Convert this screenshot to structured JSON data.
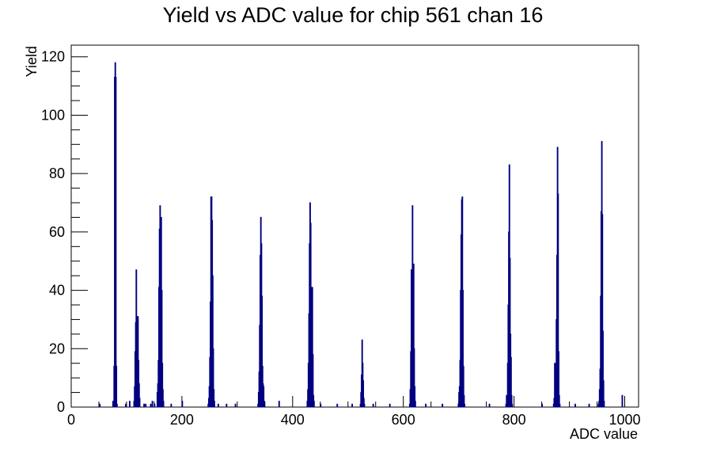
{
  "chart_data": {
    "type": "histogram",
    "title": "Yield vs ADC value for chip 561 chan 16",
    "xlabel": "ADC value",
    "ylabel": "Yield",
    "xlim": [
      0,
      1025
    ],
    "ylim": [
      0,
      124
    ],
    "x_ticks": [
      0,
      200,
      400,
      600,
      800,
      1000
    ],
    "y_ticks": [
      0,
      20,
      40,
      60,
      80,
      100,
      120
    ],
    "grid": false,
    "legend": "none",
    "line_color": "#000080",
    "bins": [
      [
        51,
        1
      ],
      [
        75,
        2
      ],
      [
        77,
        14
      ],
      [
        78,
        113
      ],
      [
        79,
        118
      ],
      [
        80,
        113
      ],
      [
        81,
        14
      ],
      [
        82,
        1
      ],
      [
        98,
        1
      ],
      [
        105,
        2
      ],
      [
        113,
        2
      ],
      [
        114,
        7
      ],
      [
        115,
        19
      ],
      [
        116,
        29
      ],
      [
        117,
        47
      ],
      [
        118,
        31
      ],
      [
        119,
        18
      ],
      [
        120,
        31
      ],
      [
        121,
        16
      ],
      [
        122,
        8
      ],
      [
        123,
        3
      ],
      [
        131,
        1
      ],
      [
        134,
        1
      ],
      [
        143,
        1
      ],
      [
        146,
        2
      ],
      [
        150,
        1
      ],
      [
        155,
        5
      ],
      [
        156,
        8
      ],
      [
        157,
        16
      ],
      [
        158,
        41
      ],
      [
        159,
        61
      ],
      [
        160,
        69
      ],
      [
        161,
        27
      ],
      [
        162,
        65
      ],
      [
        163,
        40
      ],
      [
        164,
        15
      ],
      [
        165,
        6
      ],
      [
        166,
        2
      ],
      [
        180,
        1
      ],
      [
        200,
        2
      ],
      [
        247,
        1
      ],
      [
        248,
        3
      ],
      [
        249,
        7
      ],
      [
        250,
        17
      ],
      [
        251,
        36
      ],
      [
        252,
        72
      ],
      [
        253,
        72
      ],
      [
        254,
        64
      ],
      [
        255,
        45
      ],
      [
        256,
        20
      ],
      [
        257,
        6
      ],
      [
        258,
        2
      ],
      [
        265,
        1
      ],
      [
        280,
        1
      ],
      [
        296,
        1
      ],
      [
        337,
        1
      ],
      [
        338,
        5
      ],
      [
        339,
        12
      ],
      [
        340,
        28
      ],
      [
        341,
        52
      ],
      [
        342,
        65
      ],
      [
        343,
        56
      ],
      [
        344,
        38
      ],
      [
        345,
        14
      ],
      [
        346,
        8
      ],
      [
        347,
        7
      ],
      [
        348,
        2
      ],
      [
        375,
        2
      ],
      [
        426,
        2
      ],
      [
        427,
        6
      ],
      [
        428,
        15
      ],
      [
        429,
        32
      ],
      [
        430,
        56
      ],
      [
        431,
        70
      ],
      [
        432,
        63
      ],
      [
        433,
        41
      ],
      [
        434,
        30
      ],
      [
        435,
        41
      ],
      [
        436,
        18
      ],
      [
        437,
        4
      ],
      [
        438,
        2
      ],
      [
        450,
        1
      ],
      [
        480,
        1
      ],
      [
        507,
        1
      ],
      [
        522,
        1
      ],
      [
        523,
        5
      ],
      [
        524,
        11
      ],
      [
        525,
        23
      ],
      [
        526,
        15
      ],
      [
        527,
        9
      ],
      [
        528,
        3
      ],
      [
        529,
        1
      ],
      [
        545,
        1
      ],
      [
        575,
        1
      ],
      [
        611,
        1
      ],
      [
        612,
        6
      ],
      [
        613,
        19
      ],
      [
        614,
        47
      ],
      [
        615,
        45
      ],
      [
        616,
        69
      ],
      [
        617,
        42
      ],
      [
        618,
        49
      ],
      [
        619,
        20
      ],
      [
        620,
        7
      ],
      [
        621,
        2
      ],
      [
        640,
        1
      ],
      [
        670,
        1
      ],
      [
        699,
        1
      ],
      [
        700,
        5
      ],
      [
        701,
        7
      ],
      [
        702,
        16
      ],
      [
        703,
        40
      ],
      [
        704,
        59
      ],
      [
        705,
        71
      ],
      [
        706,
        72
      ],
      [
        707,
        40
      ],
      [
        708,
        14
      ],
      [
        709,
        4
      ],
      [
        710,
        1
      ],
      [
        755,
        1
      ],
      [
        785,
        1
      ],
      [
        786,
        4
      ],
      [
        787,
        2
      ],
      [
        788,
        15
      ],
      [
        789,
        35
      ],
      [
        790,
        60
      ],
      [
        791,
        83
      ],
      [
        792,
        51
      ],
      [
        793,
        25
      ],
      [
        794,
        17
      ],
      [
        795,
        4
      ],
      [
        796,
        1
      ],
      [
        850,
        1
      ],
      [
        871,
        1
      ],
      [
        872,
        3
      ],
      [
        873,
        15
      ],
      [
        874,
        6
      ],
      [
        875,
        15
      ],
      [
        876,
        30
      ],
      [
        877,
        52
      ],
      [
        878,
        89
      ],
      [
        879,
        73
      ],
      [
        880,
        19
      ],
      [
        881,
        4
      ],
      [
        882,
        1
      ],
      [
        910,
        1
      ],
      [
        935,
        1
      ],
      [
        952,
        1
      ],
      [
        953,
        2
      ],
      [
        954,
        6
      ],
      [
        955,
        13
      ],
      [
        956,
        38
      ],
      [
        957,
        67
      ],
      [
        958,
        91
      ],
      [
        959,
        66
      ],
      [
        960,
        26
      ],
      [
        961,
        9
      ],
      [
        962,
        2
      ],
      [
        995,
        4
      ]
    ]
  }
}
